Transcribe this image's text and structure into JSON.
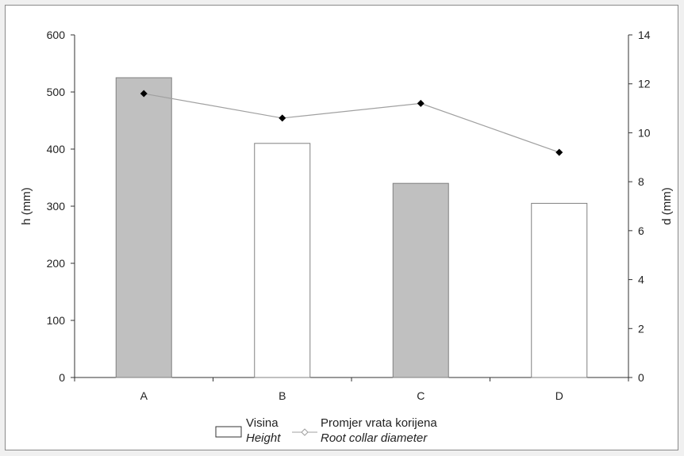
{
  "chart_data": {
    "type": "bar",
    "categories": [
      "A",
      "B",
      "C",
      "D"
    ],
    "series": [
      {
        "name": "Visina",
        "name_en": "Height",
        "axis": "left",
        "kind": "bar",
        "values": [
          525,
          410,
          340,
          305
        ],
        "fill_colors": [
          "#c0c0c0",
          "#ffffff",
          "#c0c0c0",
          "#ffffff"
        ],
        "stroke_color": "#808080"
      },
      {
        "name": "Promjer vrata korijena",
        "name_en": "Root collar diameter",
        "axis": "right",
        "kind": "line",
        "values": [
          11.6,
          10.6,
          11.2,
          9.2
        ],
        "line_color": "#a0a0a0",
        "marker_color": "#000000",
        "marker": "diamond"
      }
    ],
    "ylabel_left": "h (mm)",
    "ylabel_right": "d (mm)",
    "ylim_left": [
      0,
      600
    ],
    "yticks_left": [
      0,
      100,
      200,
      300,
      400,
      500,
      600
    ],
    "ylim_right": [
      0,
      14
    ],
    "yticks_right": [
      0,
      2,
      4,
      6,
      8,
      10,
      12,
      14
    ],
    "grid": false,
    "legend_position": "bottom"
  }
}
